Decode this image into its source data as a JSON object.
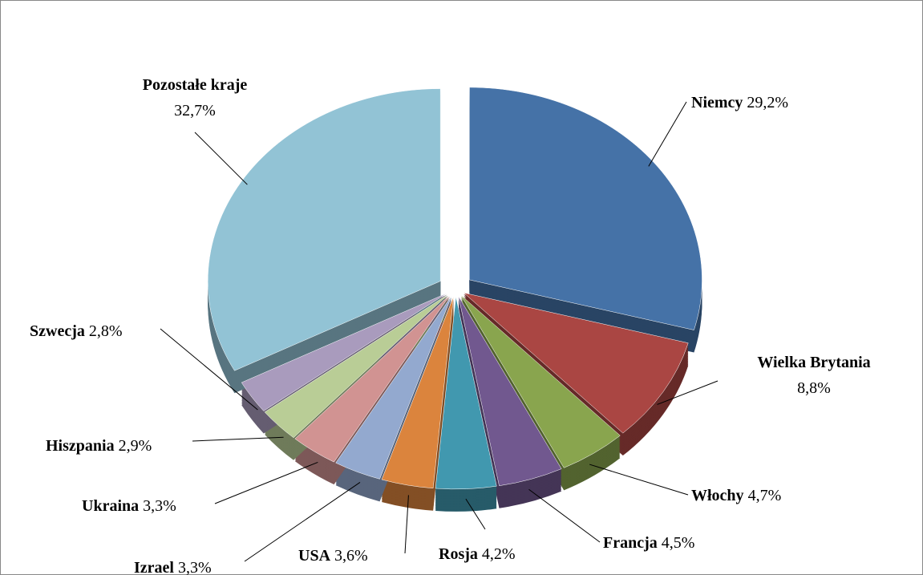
{
  "chart_data": {
    "type": "pie",
    "categories": [
      "Niemcy",
      "Wielka Brytania",
      "Włochy",
      "Francja",
      "Rosja",
      "USA",
      "Izrael",
      "Ukraina",
      "Hiszpania",
      "Szwecja",
      "Pozostałe kraje"
    ],
    "values": [
      29.2,
      8.8,
      4.7,
      4.5,
      4.2,
      3.6,
      3.3,
      3.3,
      2.9,
      2.8,
      32.7
    ],
    "value_labels": [
      "29,2%",
      "8,8%",
      "4,7%",
      "4,5%",
      "4,2%",
      "3,6%",
      "3,3%",
      "3,3%",
      "2,9%",
      "2,8%",
      "32,7%"
    ],
    "colors": [
      "#4572a7",
      "#aa4643",
      "#89a54e",
      "#71588f",
      "#4198af",
      "#db843d",
      "#93a9cf",
      "#d19392",
      "#b9cd96",
      "#a99bbd",
      "#92c3d5"
    ]
  }
}
